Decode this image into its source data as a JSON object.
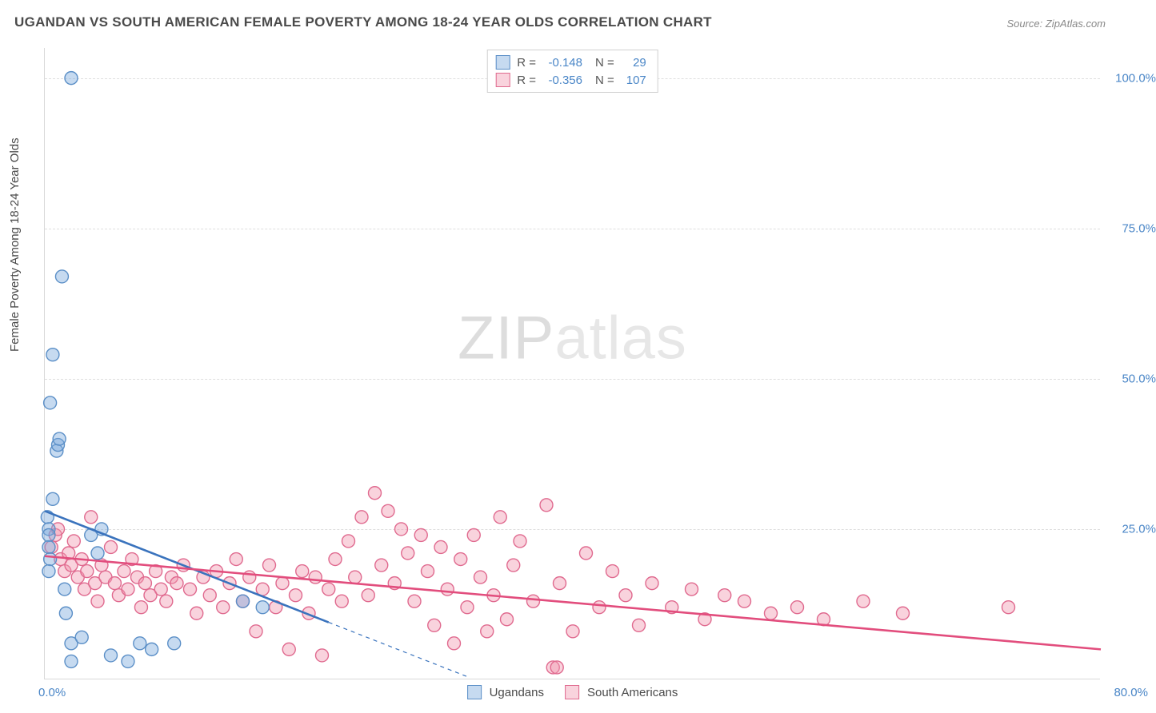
{
  "title": "UGANDAN VS SOUTH AMERICAN FEMALE POVERTY AMONG 18-24 YEAR OLDS CORRELATION CHART",
  "source": "Source: ZipAtlas.com",
  "ylabel": "Female Poverty Among 18-24 Year Olds",
  "watermark_a": "ZIP",
  "watermark_b": "atlas",
  "chart": {
    "type": "scatter",
    "xlim": [
      0,
      80
    ],
    "ylim": [
      0,
      105
    ],
    "xtick_left": "0.0%",
    "xtick_right": "80.0%",
    "yticks": [
      {
        "v": 25,
        "label": "25.0%"
      },
      {
        "v": 50,
        "label": "50.0%"
      },
      {
        "v": 75,
        "label": "75.0%"
      },
      {
        "v": 100,
        "label": "100.0%"
      }
    ],
    "grid_color": "#dedede",
    "axis_color": "#d9d9d9",
    "background": "#ffffff",
    "marker_radius": 8,
    "marker_stroke_width": 1.4,
    "line_width": 2.6,
    "dash_pattern": "5,5",
    "series": [
      {
        "key": "ugandans",
        "name": "Ugandans",
        "fill": "rgba(118,168,219,0.42)",
        "stroke": "#5b8fc7",
        "line_color": "#3a73bd",
        "R": "-0.148",
        "N": "29",
        "trend": {
          "x1": 0,
          "y1": 28,
          "x2": 21.5,
          "y2": 9.5,
          "dash_to_x": 32
        },
        "points": [
          [
            0.2,
            27
          ],
          [
            0.3,
            25
          ],
          [
            0.3,
            24
          ],
          [
            0.3,
            22
          ],
          [
            0.4,
            20
          ],
          [
            0.3,
            18
          ],
          [
            0.6,
            30
          ],
          [
            0.9,
            38
          ],
          [
            1.0,
            39
          ],
          [
            1.1,
            40
          ],
          [
            0.4,
            46
          ],
          [
            0.6,
            54
          ],
          [
            1.3,
            67
          ],
          [
            2.0,
            100
          ],
          [
            1.5,
            15
          ],
          [
            1.6,
            11
          ],
          [
            2.0,
            6
          ],
          [
            2.0,
            3
          ],
          [
            2.8,
            7
          ],
          [
            3.5,
            24
          ],
          [
            4.0,
            21
          ],
          [
            4.3,
            25
          ],
          [
            5.0,
            4
          ],
          [
            6.3,
            3
          ],
          [
            7.2,
            6
          ],
          [
            8.1,
            5
          ],
          [
            9.8,
            6
          ],
          [
            15.0,
            13
          ],
          [
            16.5,
            12
          ]
        ]
      },
      {
        "key": "south_americans",
        "name": "South Americans",
        "fill": "rgba(240,150,175,0.42)",
        "stroke": "#e06a8f",
        "line_color": "#e24d7d",
        "R": "-0.356",
        "N": "107",
        "trend": {
          "x1": 0,
          "y1": 20.5,
          "x2": 80,
          "y2": 5
        },
        "points": [
          [
            0.5,
            22
          ],
          [
            0.8,
            24
          ],
          [
            1.0,
            25
          ],
          [
            1.2,
            20
          ],
          [
            1.5,
            18
          ],
          [
            1.8,
            21
          ],
          [
            2.0,
            19
          ],
          [
            2.2,
            23
          ],
          [
            2.5,
            17
          ],
          [
            2.8,
            20
          ],
          [
            3.0,
            15
          ],
          [
            3.2,
            18
          ],
          [
            3.5,
            27
          ],
          [
            3.8,
            16
          ],
          [
            4.0,
            13
          ],
          [
            4.3,
            19
          ],
          [
            4.6,
            17
          ],
          [
            5.0,
            22
          ],
          [
            5.3,
            16
          ],
          [
            5.6,
            14
          ],
          [
            6.0,
            18
          ],
          [
            6.3,
            15
          ],
          [
            6.6,
            20
          ],
          [
            7.0,
            17
          ],
          [
            7.3,
            12
          ],
          [
            7.6,
            16
          ],
          [
            8.0,
            14
          ],
          [
            8.4,
            18
          ],
          [
            8.8,
            15
          ],
          [
            9.2,
            13
          ],
          [
            9.6,
            17
          ],
          [
            10.0,
            16
          ],
          [
            10.5,
            19
          ],
          [
            11.0,
            15
          ],
          [
            11.5,
            11
          ],
          [
            12.0,
            17
          ],
          [
            12.5,
            14
          ],
          [
            13.0,
            18
          ],
          [
            13.5,
            12
          ],
          [
            14.0,
            16
          ],
          [
            14.5,
            20
          ],
          [
            15.0,
            13
          ],
          [
            15.5,
            17
          ],
          [
            16.0,
            8
          ],
          [
            16.5,
            15
          ],
          [
            17.0,
            19
          ],
          [
            17.5,
            12
          ],
          [
            18.0,
            16
          ],
          [
            18.5,
            5
          ],
          [
            19.0,
            14
          ],
          [
            19.5,
            18
          ],
          [
            20.0,
            11
          ],
          [
            20.5,
            17
          ],
          [
            21.0,
            4
          ],
          [
            21.5,
            15
          ],
          [
            22.0,
            20
          ],
          [
            22.5,
            13
          ],
          [
            23.0,
            23
          ],
          [
            23.5,
            17
          ],
          [
            24.0,
            27
          ],
          [
            24.5,
            14
          ],
          [
            25.0,
            31
          ],
          [
            25.5,
            19
          ],
          [
            26.0,
            28
          ],
          [
            26.5,
            16
          ],
          [
            27.0,
            25
          ],
          [
            27.5,
            21
          ],
          [
            28.0,
            13
          ],
          [
            28.5,
            24
          ],
          [
            29.0,
            18
          ],
          [
            29.5,
            9
          ],
          [
            30.0,
            22
          ],
          [
            30.5,
            15
          ],
          [
            31.0,
            6
          ],
          [
            31.5,
            20
          ],
          [
            32.0,
            12
          ],
          [
            32.5,
            24
          ],
          [
            33.0,
            17
          ],
          [
            33.5,
            8
          ],
          [
            34.0,
            14
          ],
          [
            34.5,
            27
          ],
          [
            35.0,
            10
          ],
          [
            35.5,
            19
          ],
          [
            36.0,
            23
          ],
          [
            37.0,
            13
          ],
          [
            38.0,
            29
          ],
          [
            38.5,
            2
          ],
          [
            39.0,
            16
          ],
          [
            40.0,
            8
          ],
          [
            41.0,
            21
          ],
          [
            42.0,
            12
          ],
          [
            43.0,
            18
          ],
          [
            44.0,
            14
          ],
          [
            45.0,
            9
          ],
          [
            46.0,
            16
          ],
          [
            47.5,
            12
          ],
          [
            49.0,
            15
          ],
          [
            50.0,
            10
          ],
          [
            51.5,
            14
          ],
          [
            53.0,
            13
          ],
          [
            55.0,
            11
          ],
          [
            57.0,
            12
          ],
          [
            59.0,
            10
          ],
          [
            62.0,
            13
          ],
          [
            65.0,
            11
          ],
          [
            73.0,
            12
          ],
          [
            38.8,
            2
          ]
        ]
      }
    ],
    "legend_top": {
      "R_label": "R =",
      "N_label": "N ="
    }
  }
}
